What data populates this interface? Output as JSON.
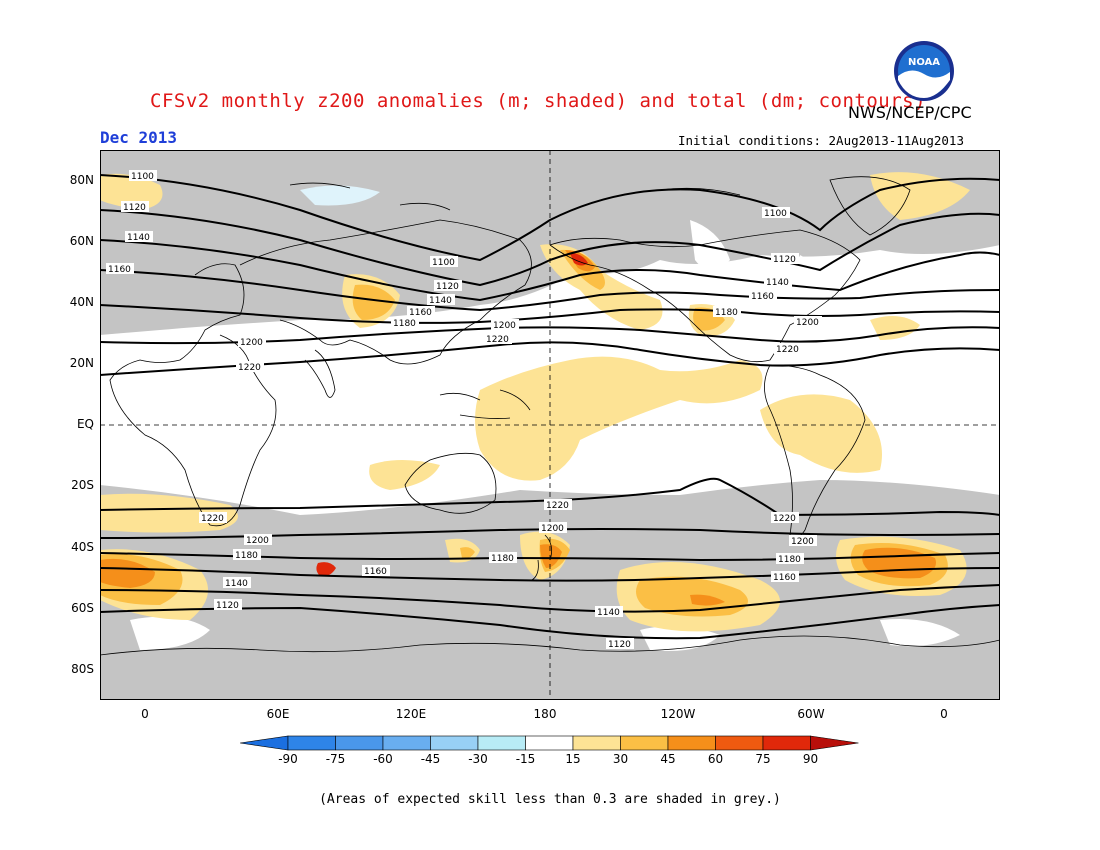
{
  "header": {
    "title": "CFSv2 monthly z200 anomalies (m; shaded) and total (dm; contours)",
    "period": "Dec 2013",
    "agency": "NWS/NCEP/CPC",
    "initial_conditions": "Initial conditions: 2Aug2013-11Aug2013",
    "logo_text": "NOAA"
  },
  "map": {
    "lat_labels": [
      "80N",
      "60N",
      "40N",
      "20N",
      "EQ",
      "20S",
      "40S",
      "60S",
      "80S"
    ],
    "lon_labels": [
      "0",
      "60E",
      "120E",
      "180",
      "120W",
      "60W",
      "0"
    ],
    "contour_labels": {
      "c1100": "1100",
      "c1120": "1120",
      "c1140": "1140",
      "c1160": "1160",
      "c1180": "1180",
      "c1200": "1200",
      "c1220": "1220"
    }
  },
  "colorbar": {
    "ticks": [
      "-90",
      "-75",
      "-60",
      "-45",
      "-30",
      "-15",
      "15",
      "30",
      "45",
      "60",
      "75",
      "90"
    ],
    "colors": [
      "#1b6fe0",
      "#2e84e8",
      "#4a97ea",
      "#69aef0",
      "#98d0f5",
      "#b8ecf6",
      "#ffffff",
      "#fde395",
      "#fbbf45",
      "#f58f1a",
      "#ef5a10",
      "#e0280a",
      "#b80f0a"
    ]
  },
  "footer": {
    "note": "(Areas of expected skill less than 0.3 are shaded in grey.)"
  },
  "colors": {
    "title": "#e01818",
    "period": "#1f3fd8",
    "low_skill_grey": "#c4c4c4"
  }
}
